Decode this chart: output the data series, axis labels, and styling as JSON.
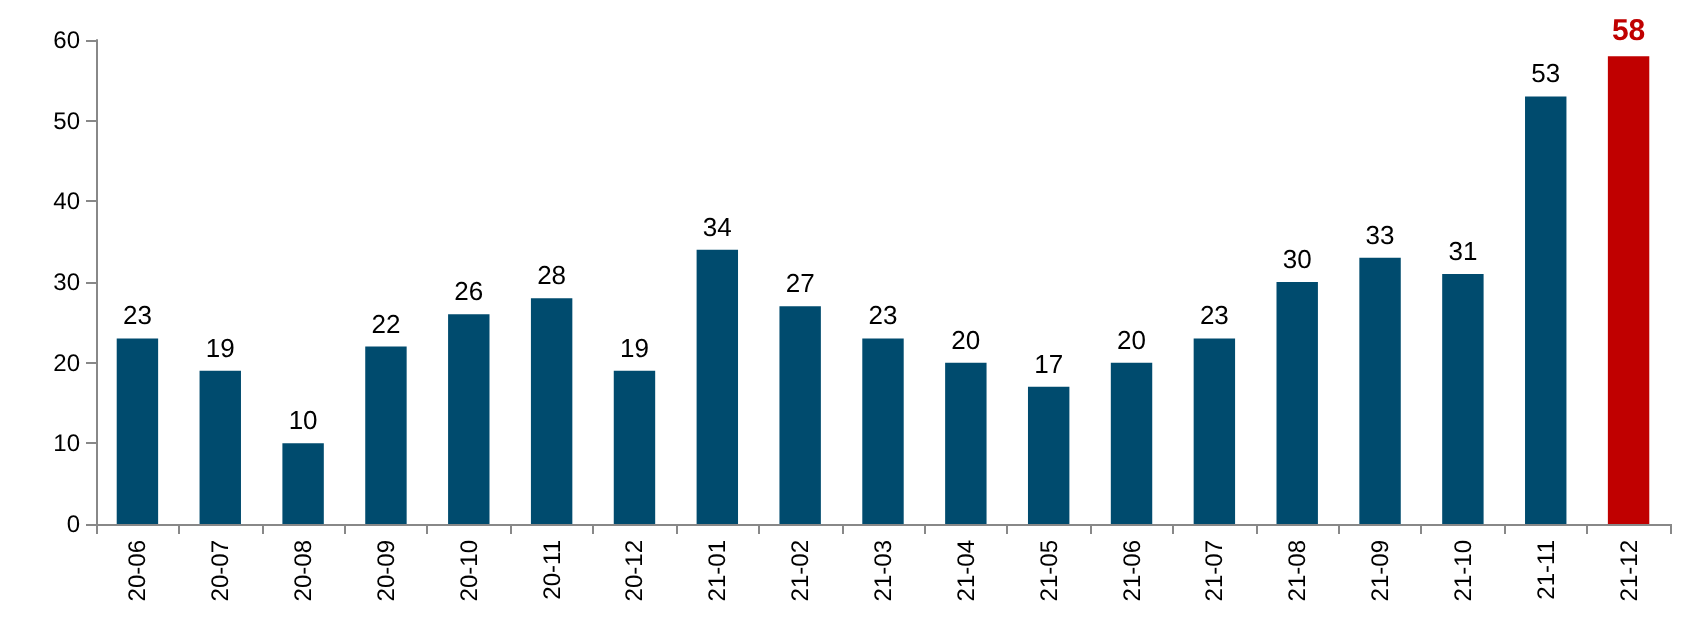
{
  "chart_data": {
    "type": "bar",
    "categories": [
      "20-06",
      "20-07",
      "20-08",
      "20-09",
      "20-10",
      "20-11",
      "20-12",
      "21-01",
      "21-02",
      "21-03",
      "21-04",
      "21-05",
      "21-06",
      "21-07",
      "21-08",
      "21-09",
      "21-10",
      "21-11",
      "21-12"
    ],
    "values": [
      23,
      19,
      10,
      22,
      26,
      28,
      19,
      34,
      27,
      23,
      20,
      17,
      20,
      23,
      30,
      33,
      31,
      53,
      58
    ],
    "colors": [
      "#004b6e",
      "#004b6e",
      "#004b6e",
      "#004b6e",
      "#004b6e",
      "#004b6e",
      "#004b6e",
      "#004b6e",
      "#004b6e",
      "#004b6e",
      "#004b6e",
      "#004b6e",
      "#004b6e",
      "#004b6e",
      "#004b6e",
      "#004b6e",
      "#004b6e",
      "#004b6e",
      "#c00000"
    ],
    "ylim": [
      0,
      60
    ],
    "yticks": [
      0,
      10,
      20,
      30,
      40,
      50,
      60
    ],
    "grid": false,
    "data_labels": true
  }
}
